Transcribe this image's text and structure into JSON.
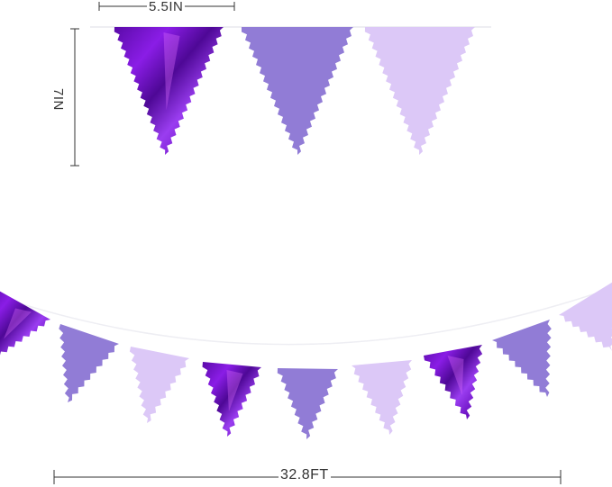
{
  "dimensions": {
    "width_label": "5.5IN",
    "height_label": "7IN",
    "length_label": "32.8FT"
  },
  "colors": {
    "metallic_purple": "#7d16d2",
    "lavender": "#917cd6",
    "light_lilac": "#dcc8f7",
    "line": "#333333"
  },
  "flags": [
    "metallic_purple",
    "lavender",
    "light_lilac",
    "metallic_purple",
    "lavender",
    "light_lilac",
    "metallic_purple",
    "lavender",
    "light_lilac",
    "metallic_purple",
    "lavender",
    "light_lilac",
    "light_lilac"
  ]
}
